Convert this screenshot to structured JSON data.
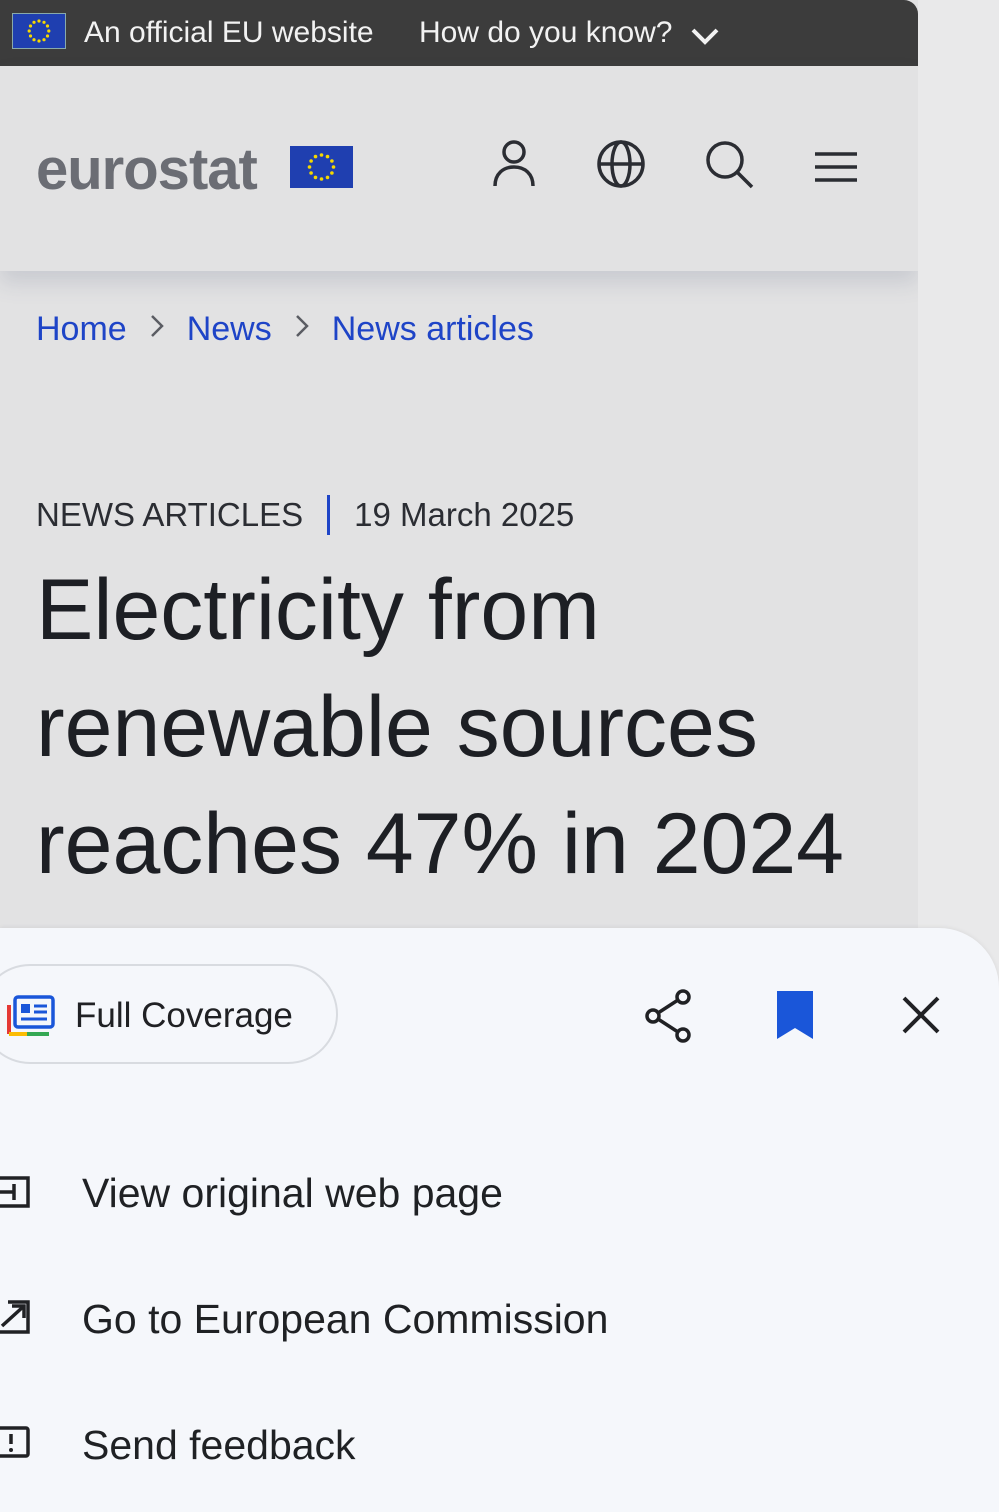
{
  "eu_banner": {
    "official_text": "An official EU website",
    "how_text": "How do you know?"
  },
  "header": {
    "logo_text": "eurostat"
  },
  "breadcrumb": [
    "Home",
    "News",
    "News articles"
  ],
  "article": {
    "category": "NEWS ARTICLES",
    "date": "19 March 2025",
    "title": "Electricity from renewable sources reaches 47% in 2024"
  },
  "sheet": {
    "chip_label": "Full Coverage",
    "menu": [
      {
        "label": "View original web page",
        "icon": "web-page-icon"
      },
      {
        "label": "Go to European Commission",
        "icon": "open-external-icon"
      },
      {
        "label": "Send feedback",
        "icon": "feedback-icon"
      }
    ]
  },
  "colors": {
    "link_blue": "#1e44c7",
    "bookmark_blue": "#1a56d9",
    "banner_bg": "#3c3c3c"
  }
}
